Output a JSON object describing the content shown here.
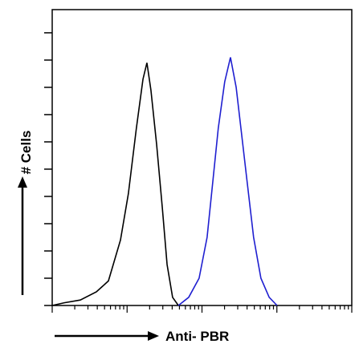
{
  "chart_data": {
    "type": "line",
    "y_label": "# Cells",
    "x_label": "Anti- PBR",
    "xscale": "log",
    "xlim": [
      1,
      10000
    ],
    "xticks": [
      1,
      2,
      3,
      4,
      5,
      6,
      7,
      8,
      9,
      10,
      20,
      30,
      40,
      50,
      60,
      70,
      80,
      90,
      100,
      200,
      300,
      400,
      500,
      600,
      700,
      800,
      900,
      1000,
      2000,
      3000,
      4000,
      5000,
      6000,
      7000,
      8000,
      9000,
      10000
    ],
    "ylim": [
      0,
      108.5
    ],
    "yticks": [
      0,
      10,
      20,
      30,
      40,
      50,
      60,
      70,
      80,
      90,
      100
    ],
    "series": [
      {
        "color": "#000000",
        "x": [
          1,
          1.45,
          2.37,
          3.89,
          5.63,
          8.16,
          10.4,
          13.3,
          16.3,
          18.4,
          20.8,
          24.8,
          29.5,
          34.2,
          40.5,
          48.4
        ],
        "values": [
          0,
          1,
          2,
          5,
          9,
          24,
          41,
          65,
          83,
          89,
          79,
          59,
          36,
          15,
          3,
          0
        ]
      },
      {
        "color": "#1f1fd0",
        "x": [
          48.4,
          66.5,
          91.5,
          117,
          139,
          165,
          201,
          240,
          286,
          331,
          402,
          489,
          612,
          789,
          1005
        ],
        "values": [
          0,
          3,
          10,
          25,
          45,
          65,
          82,
          91,
          80,
          65,
          45,
          25,
          10,
          3,
          0
        ]
      }
    ]
  }
}
